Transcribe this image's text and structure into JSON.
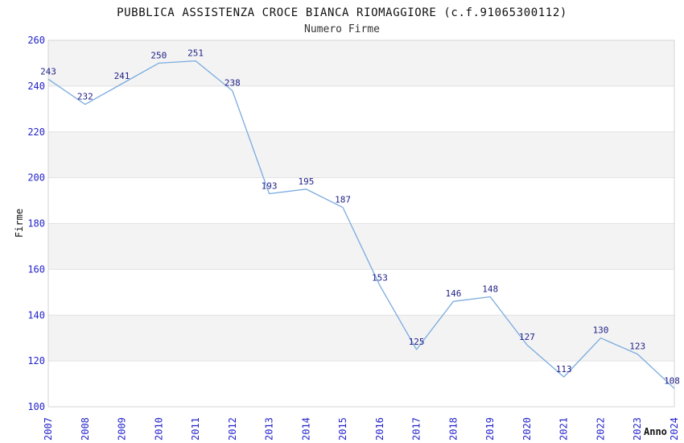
{
  "window": {
    "title": "PUBBLICA ASSISTENZA CROCE BIANCA RIOMAGGIORE (c.f.91065300112)"
  },
  "chart_data": {
    "type": "line",
    "title": "PUBBLICA ASSISTENZA CROCE BIANCA RIOMAGGIORE (c.f.91065300112)",
    "subtitle": "Numero Firme",
    "xlabel": "Anno",
    "ylabel": "Firme",
    "categories": [
      "2007",
      "2008",
      "2009",
      "2010",
      "2011",
      "2012",
      "2013",
      "2014",
      "2015",
      "2016",
      "2017",
      "2018",
      "2019",
      "2020",
      "2021",
      "2022",
      "2023",
      "2024"
    ],
    "values": [
      243,
      232,
      241,
      250,
      251,
      238,
      193,
      195,
      187,
      153,
      125,
      146,
      148,
      127,
      113,
      130,
      123,
      108
    ],
    "ylim": [
      100,
      260
    ],
    "ytick_step": 20,
    "yticks": [
      100,
      120,
      140,
      160,
      180,
      200,
      220,
      240,
      260
    ],
    "grid": "horizontal-bands-alternating",
    "legend": "none",
    "point_labels_shown": true,
    "colors": {
      "line": "#7aabdf",
      "tick_label": "#2424cc",
      "point_label": "#1f1f87",
      "band_fill": "#f3f3f3",
      "gridline": "#e2e2e2",
      "plot_border": "#d4d4d4",
      "title_text": "#111111",
      "subtitle_text": "#333333",
      "axis_text": "#111111",
      "background": "#ffffff"
    }
  }
}
